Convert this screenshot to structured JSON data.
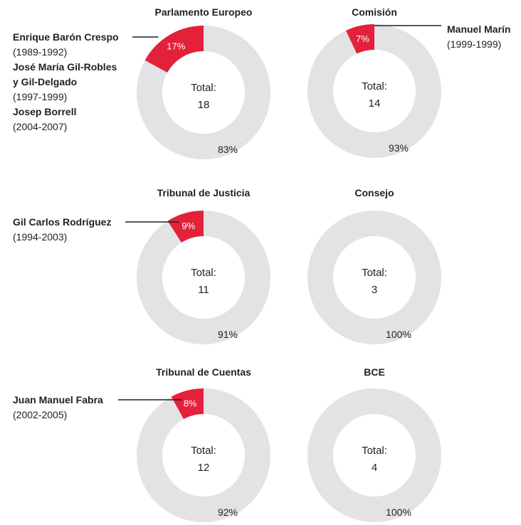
{
  "colors": {
    "highlight": "#e4213a",
    "rest": "#e3e3e6",
    "text": "#222222",
    "leader_line": "#222222"
  },
  "total_label": "Total:",
  "chart_data": [
    {
      "type": "pie",
      "title": "Parlamento Europeo",
      "total": 18,
      "slices": [
        {
          "value": 17,
          "label": "17%",
          "color": "#e4213a"
        },
        {
          "value": 83,
          "label": "83%",
          "color": "#e3e3e6"
        }
      ],
      "annotation": [
        {
          "name": "Enrique Barón Crespo",
          "years": "(1989-1992)"
        },
        {
          "name": "José María Gil-Robles",
          "years": ""
        },
        {
          "name": "y Gil-Delgado",
          "years": "(1997-1999)"
        },
        {
          "name": "Josep Borrell",
          "years": "(2004-2007)"
        }
      ],
      "annotation_side": "left"
    },
    {
      "type": "pie",
      "title": "Comisión",
      "total": 14,
      "slices": [
        {
          "value": 7,
          "label": "7%",
          "color": "#e4213a"
        },
        {
          "value": 93,
          "label": "93%",
          "color": "#e3e3e6"
        }
      ],
      "annotation": [
        {
          "name": "Manuel Marín",
          "years": "(1999-1999)"
        }
      ],
      "annotation_side": "right"
    },
    {
      "type": "pie",
      "title": "Tribunal de Justicia",
      "total": 11,
      "slices": [
        {
          "value": 9,
          "label": "9%",
          "color": "#e4213a"
        },
        {
          "value": 91,
          "label": "91%",
          "color": "#e3e3e6"
        }
      ],
      "annotation": [
        {
          "name": "Gil Carlos Rodríguez",
          "years": "(1994-2003)"
        }
      ],
      "annotation_side": "left"
    },
    {
      "type": "pie",
      "title": "Consejo",
      "total": 3,
      "slices": [
        {
          "value": 100,
          "label": "100%",
          "color": "#e3e3e6"
        }
      ],
      "annotation": [],
      "annotation_side": "none"
    },
    {
      "type": "pie",
      "title": "Tribunal de Cuentas",
      "total": 12,
      "slices": [
        {
          "value": 8,
          "label": "8%",
          "color": "#e4213a"
        },
        {
          "value": 92,
          "label": "92%",
          "color": "#e3e3e6"
        }
      ],
      "annotation": [
        {
          "name": "Juan Manuel Fabra",
          "years": "(2002-2005)"
        }
      ],
      "annotation_side": "left"
    },
    {
      "type": "pie",
      "title": "BCE",
      "total": 4,
      "slices": [
        {
          "value": 100,
          "label": "100%",
          "color": "#e3e3e6"
        }
      ],
      "annotation": [],
      "annotation_side": "none"
    }
  ]
}
